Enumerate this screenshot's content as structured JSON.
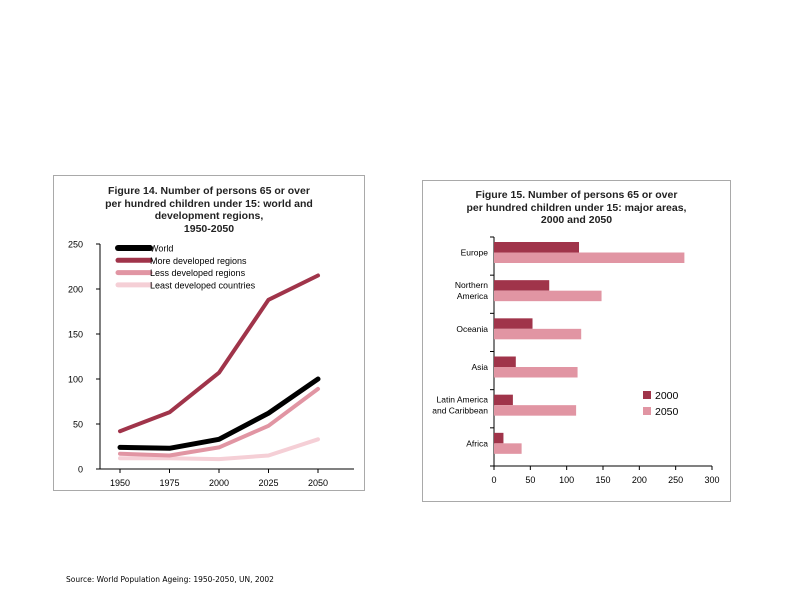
{
  "source_note": "Source: World Population Ageing: 1950-2050, UN, 2002",
  "colors": {
    "world": "#000000",
    "more_developed": "#a0344a",
    "less_developed": "#e195a3",
    "least_developed": "#f5cfd6",
    "bar_2000": "#a0344a",
    "bar_2050": "#e195a3"
  },
  "chart_data": [
    {
      "type": "line",
      "title_lines": [
        "Figure 14.  Number of persons 65 or over",
        "per hundred children under 15: world and",
        "development regions,",
        "1950-2050"
      ],
      "categories": [
        "1950",
        "1975",
        "2000",
        "2025",
        "2050"
      ],
      "ylim": [
        0,
        250
      ],
      "yticks": [
        "0",
        "50",
        "100",
        "150",
        "200",
        "250"
      ],
      "series": [
        {
          "name": "World",
          "values": [
            24,
            23,
            33,
            62,
            100
          ]
        },
        {
          "name": "More developed regions",
          "values": [
            42,
            63,
            107,
            188,
            215
          ]
        },
        {
          "name": "Less developed regions",
          "values": [
            17,
            15,
            24,
            48,
            89
          ]
        },
        {
          "name": "Least developed countries",
          "values": [
            12,
            12,
            11,
            15,
            33
          ]
        }
      ]
    },
    {
      "type": "bar",
      "orientation": "horizontal",
      "title_lines": [
        "Figure 15.  Number of persons 65 or over",
        "per hundred children under 15: major areas,",
        "2000 and 2050"
      ],
      "categories": [
        [
          "Europe"
        ],
        [
          "Northern",
          "America"
        ],
        [
          "Oceania"
        ],
        [
          "Asia"
        ],
        [
          "Latin America",
          "and Caribbean"
        ],
        [
          "Africa"
        ]
      ],
      "xlim": [
        0,
        300
      ],
      "xticks": [
        "0",
        "50",
        "100",
        "150",
        "200",
        "250",
        "300"
      ],
      "series": [
        {
          "name": "2000",
          "values": [
            117,
            76,
            53,
            30,
            26,
            13
          ]
        },
        {
          "name": "2050",
          "values": [
            262,
            148,
            120,
            115,
            113,
            38
          ]
        }
      ]
    }
  ]
}
